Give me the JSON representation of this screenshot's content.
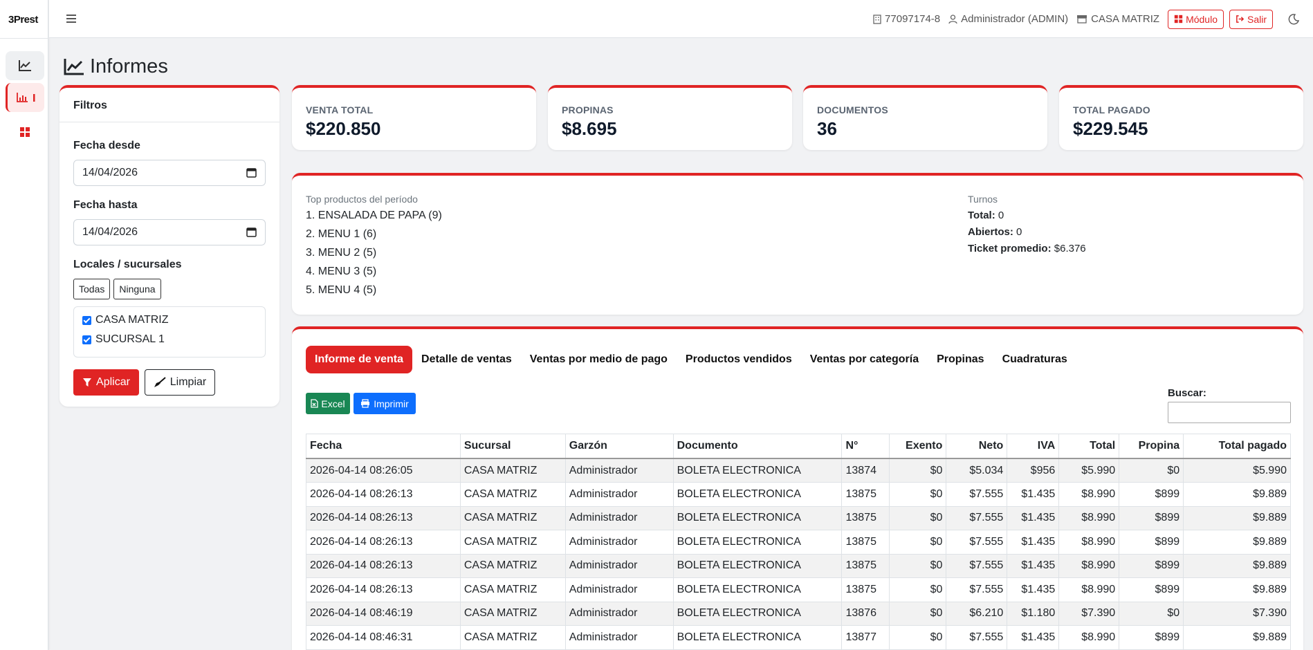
{
  "app": {
    "logo_main": "3Prest"
  },
  "header": {
    "rut": "77097174-8",
    "user": "Administrador (ADMIN)",
    "branch": "CASA MATRIZ",
    "module_label": "Módulo",
    "logout_label": "Salir"
  },
  "page": {
    "title": "Informes"
  },
  "filters": {
    "title": "Filtros",
    "date_from_label": "Fecha desde",
    "date_from_value": "14/04/2026",
    "date_to_label": "Fecha hasta",
    "date_to_value": "14/04/2026",
    "locations_label": "Locales / sucursales",
    "all_label": "Todas",
    "none_label": "Ninguna",
    "locations": [
      {
        "name": "CASA MATRIZ",
        "checked": true
      },
      {
        "name": "SUCURSAL 1",
        "checked": true
      }
    ],
    "apply_label": "Aplicar",
    "clear_label": "Limpiar"
  },
  "stats": [
    {
      "label": "VENTA TOTAL",
      "value": "$220.850"
    },
    {
      "label": "PROPINAS",
      "value": "$8.695"
    },
    {
      "label": "DOCUMENTOS",
      "value": "36"
    },
    {
      "label": "TOTAL PAGADO",
      "value": "$229.545"
    }
  ],
  "top_products": {
    "title": "Top productos del período",
    "items": [
      "1. ENSALADA DE PAPA (9)",
      "2. MENU 1 (6)",
      "3. MENU 2 (5)",
      "4. MENU 3 (5)",
      "5. MENU 4 (5)"
    ]
  },
  "shifts": {
    "title": "Turnos",
    "total_label": "Total:",
    "total_value": "0",
    "open_label": "Abiertos:",
    "open_value": "0",
    "avg_label": "Ticket promedio:",
    "avg_value": "$6.376"
  },
  "tabs": [
    "Informe de venta",
    "Detalle de ventas",
    "Ventas por medio de pago",
    "Productos vendidos",
    "Ventas por categoría",
    "Propinas",
    "Cuadraturas"
  ],
  "toolbar": {
    "excel_label": "Excel",
    "print_label": "Imprimir",
    "search_label": "Buscar:"
  },
  "table": {
    "columns": [
      "Fecha",
      "Sucursal",
      "Garzón",
      "Documento",
      "N°",
      "Exento",
      "Neto",
      "IVA",
      "Total",
      "Propina",
      "Total pagado"
    ],
    "rows": [
      [
        "2026-04-14 08:26:05",
        "CASA MATRIZ",
        "Administrador",
        "BOLETA ELECTRONICA",
        "13874",
        "$0",
        "$5.034",
        "$956",
        "$5.990",
        "$0",
        "$5.990"
      ],
      [
        "2026-04-14 08:26:13",
        "CASA MATRIZ",
        "Administrador",
        "BOLETA ELECTRONICA",
        "13875",
        "$0",
        "$7.555",
        "$1.435",
        "$8.990",
        "$899",
        "$9.889"
      ],
      [
        "2026-04-14 08:26:13",
        "CASA MATRIZ",
        "Administrador",
        "BOLETA ELECTRONICA",
        "13875",
        "$0",
        "$7.555",
        "$1.435",
        "$8.990",
        "$899",
        "$9.889"
      ],
      [
        "2026-04-14 08:26:13",
        "CASA MATRIZ",
        "Administrador",
        "BOLETA ELECTRONICA",
        "13875",
        "$0",
        "$7.555",
        "$1.435",
        "$8.990",
        "$899",
        "$9.889"
      ],
      [
        "2026-04-14 08:26:13",
        "CASA MATRIZ",
        "Administrador",
        "BOLETA ELECTRONICA",
        "13875",
        "$0",
        "$7.555",
        "$1.435",
        "$8.990",
        "$899",
        "$9.889"
      ],
      [
        "2026-04-14 08:26:13",
        "CASA MATRIZ",
        "Administrador",
        "BOLETA ELECTRONICA",
        "13875",
        "$0",
        "$7.555",
        "$1.435",
        "$8.990",
        "$899",
        "$9.889"
      ],
      [
        "2026-04-14 08:46:19",
        "CASA MATRIZ",
        "Administrador",
        "BOLETA ELECTRONICA",
        "13876",
        "$0",
        "$6.210",
        "$1.180",
        "$7.390",
        "$0",
        "$7.390"
      ],
      [
        "2026-04-14 08:46:31",
        "CASA MATRIZ",
        "Administrador",
        "BOLETA ELECTRONICA",
        "13877",
        "$0",
        "$7.555",
        "$1.435",
        "$8.990",
        "$899",
        "$9.889"
      ]
    ]
  }
}
